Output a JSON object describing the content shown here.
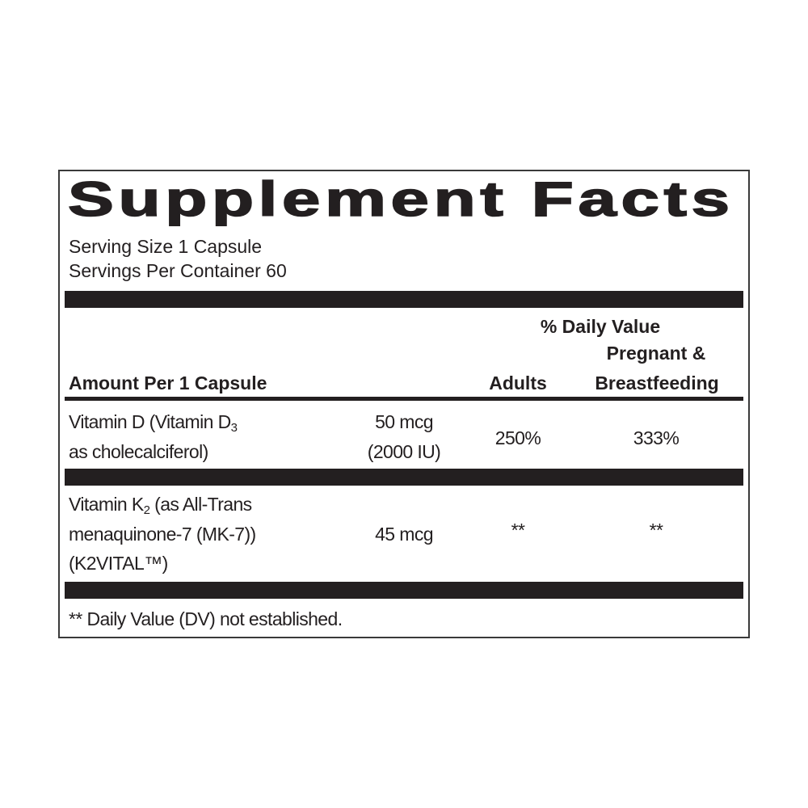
{
  "title": "Supplement Facts",
  "serving_size": "Serving Size 1 Capsule",
  "servings_per_container": "Servings Per Container 60",
  "header": {
    "daily_value": "% Daily Value",
    "pregnant": "Pregnant &",
    "amount_per": "Amount Per 1 Capsule",
    "adults": "Adults",
    "breastfeeding": "Breastfeeding"
  },
  "rows": [
    {
      "name_lines": [
        "Vitamin D (Vitamin D",
        "as cholecalciferol)"
      ],
      "name_sub": "3",
      "amount_lines": [
        "50 mcg",
        "(2000 IU)"
      ],
      "adults": "250%",
      "pregnant": "333%"
    },
    {
      "name_lines": [
        "Vitamin K",
        " (as All-Trans",
        "menaquinone-7 (MK-7))",
        "(K2VITAL™)"
      ],
      "name_sub": "2",
      "amount_lines": [
        "45 mcg"
      ],
      "adults": "**",
      "pregnant": "**"
    }
  ],
  "footnote": "** Daily Value (DV) not established.",
  "colors": {
    "ink": "#231f20",
    "background": "#ffffff"
  }
}
